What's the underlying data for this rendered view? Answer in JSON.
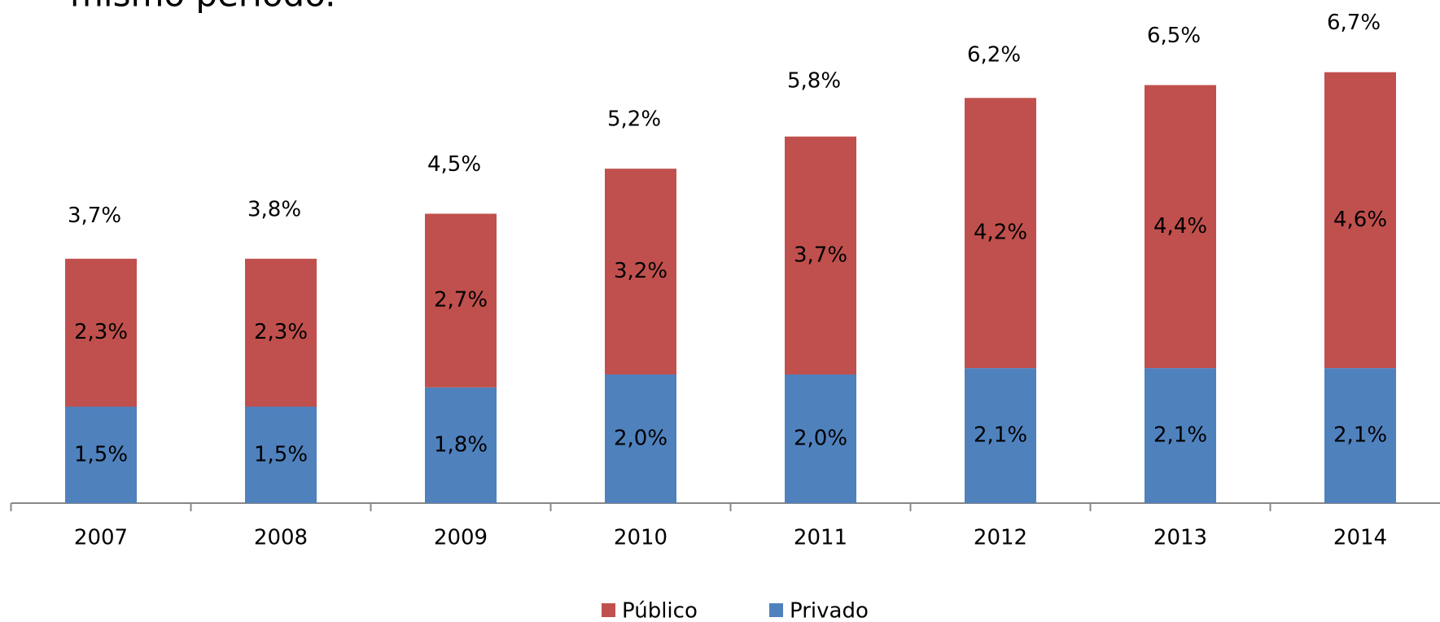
{
  "chart_data": {
    "type": "stacked_bar",
    "title": "mismo período.",
    "categories": [
      "2007",
      "2008",
      "2009",
      "2010",
      "2011",
      "2012",
      "2013",
      "2014"
    ],
    "series": [
      {
        "name": "Privado",
        "color": "#4f81bd",
        "values": [
          1.5,
          1.5,
          1.8,
          2.0,
          2.0,
          2.1,
          2.1,
          2.1
        ],
        "value_labels": [
          "1,5%",
          "1,5%",
          "1,8%",
          "2,0%",
          "2,0%",
          "2,1%",
          "2,1%",
          "2,1%"
        ]
      },
      {
        "name": "Público",
        "color": "#c0504d",
        "values": [
          2.3,
          2.3,
          2.7,
          3.2,
          3.7,
          4.2,
          4.4,
          4.6
        ],
        "value_labels": [
          "2,3%",
          "2,3%",
          "2,7%",
          "3,2%",
          "3,7%",
          "4,2%",
          "4,4%",
          "4,6%"
        ]
      }
    ],
    "totals": [
      3.7,
      3.8,
      4.5,
      5.2,
      5.8,
      6.2,
      6.5,
      6.7
    ],
    "total_labels": [
      "3,7%",
      "3,8%",
      "4,5%",
      "5,2%",
      "5,8%",
      "6,2%",
      "6,5%",
      "6,7%"
    ],
    "legend": "bottom"
  }
}
